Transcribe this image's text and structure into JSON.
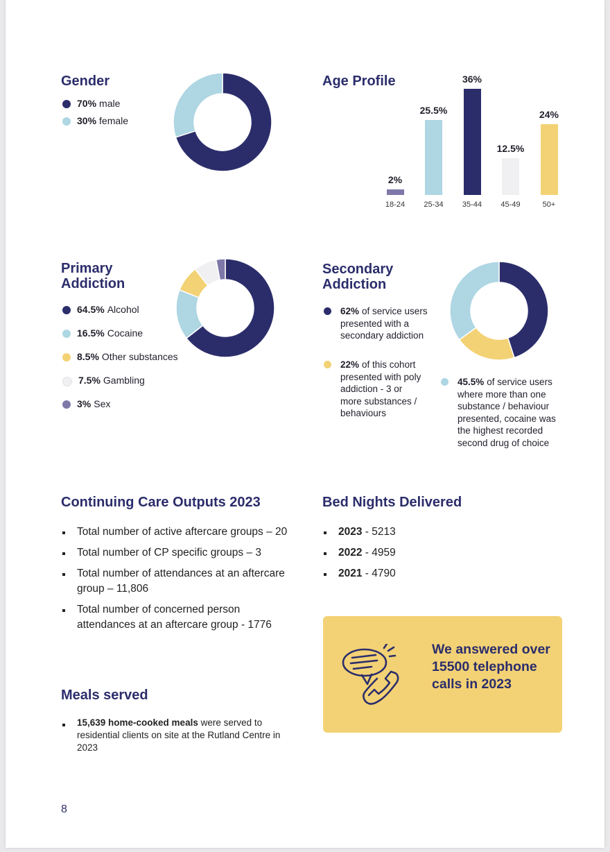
{
  "colors": {
    "navy": "#2b2d6b",
    "light_blue": "#aed6e3",
    "yellow": "#f3d275",
    "light_grey": "#f0f0f2",
    "purple": "#7d78a8"
  },
  "gender": {
    "title": "Gender",
    "legend": [
      {
        "pct": "70%",
        "label": "male",
        "color": "#2b2d6b"
      },
      {
        "pct": "30%",
        "label": "female",
        "color": "#aed6e3"
      }
    ]
  },
  "age": {
    "title": "Age Profile"
  },
  "primary": {
    "title_line1": "Primary",
    "title_line2": "Addiction",
    "legend": [
      {
        "pct": "64.5%",
        "label": "Alcohol",
        "color": "#2b2d6b"
      },
      {
        "pct": "16.5%",
        "label": "Cocaine",
        "color": "#aed6e3"
      },
      {
        "pct": "8.5%",
        "label": "Other substances",
        "color": "#f3d275"
      },
      {
        "pct": "7.5%",
        "label": "Gambling",
        "color": "#f0f0f2"
      },
      {
        "pct": "3%",
        "label": "Sex",
        "color": "#7d78a8"
      }
    ]
  },
  "secondary": {
    "title_line1": "Secondary",
    "title_line2": "Addiction",
    "items": [
      {
        "pct": "62%",
        "lines": [
          "of service users",
          "presented with a",
          "secondary addiction"
        ],
        "color": "#2b2d6b"
      },
      {
        "pct": "22%",
        "lines": [
          "of this cohort",
          "presented with poly",
          "addiction - 3 or",
          "more substances /",
          "behaviours"
        ],
        "color": "#f3d275"
      },
      {
        "pct": "45.5%",
        "lines": [
          "of service users",
          "where more than one",
          "substance / behaviour",
          "presented, cocaine was",
          "the highest recorded",
          "second drug of choice"
        ],
        "color": "#aed6e3"
      }
    ]
  },
  "continuing_care": {
    "title": "Continuing Care Outputs 2023",
    "items": [
      "Total number of active aftercare groups – 20",
      "Total number of CP specific groups – 3",
      "Total number of attendances at an aftercare group – 11,806",
      "Total number of concerned person attendances at an aftercare group - 1776"
    ]
  },
  "bed_nights": {
    "title": "Bed Nights Delivered",
    "items": [
      {
        "year": "2023",
        "value": "5213"
      },
      {
        "year": "2022",
        "value": "4959"
      },
      {
        "year": "2021",
        "value": "4790"
      }
    ]
  },
  "callout": {
    "text": "We answered over 15500 telephone calls in 2023",
    "icon": "phone-chat-icon"
  },
  "meals": {
    "title": "Meals served",
    "bold": "15,639 home-cooked meals",
    "rest": "were served to residential clients on site at the Rutland Centre in 2023"
  },
  "page_number": "8",
  "chart_data": [
    {
      "type": "pie",
      "title": "Gender",
      "categories": [
        "male",
        "female"
      ],
      "values": [
        70,
        30
      ],
      "colors": [
        "#2b2d6b",
        "#aed6e3"
      ]
    },
    {
      "type": "bar",
      "title": "Age Profile",
      "categories": [
        "18-24",
        "25-34",
        "35-44",
        "45-49",
        "50+"
      ],
      "values": [
        2,
        25.5,
        36,
        12.5,
        24
      ],
      "labels": [
        "2%",
        "25.5%",
        "36%",
        "12.5%",
        "24%"
      ],
      "colors": [
        "#7d78a8",
        "#aed6e3",
        "#2b2d6b",
        "#f0f0f2",
        "#f3d275"
      ],
      "ylim": [
        0,
        36
      ]
    },
    {
      "type": "pie",
      "title": "Primary Addiction",
      "categories": [
        "Alcohol",
        "Cocaine",
        "Other substances",
        "Gambling",
        "Sex"
      ],
      "values": [
        64.5,
        16.5,
        8.5,
        7.5,
        3
      ],
      "colors": [
        "#2b2d6b",
        "#aed6e3",
        "#f3d275",
        "#f0f0f2",
        "#7d78a8"
      ]
    },
    {
      "type": "pie",
      "title": "Secondary Addiction",
      "values": [
        45,
        20,
        35
      ],
      "colors": [
        "#2b2d6b",
        "#f3d275",
        "#aed6e3"
      ]
    }
  ]
}
